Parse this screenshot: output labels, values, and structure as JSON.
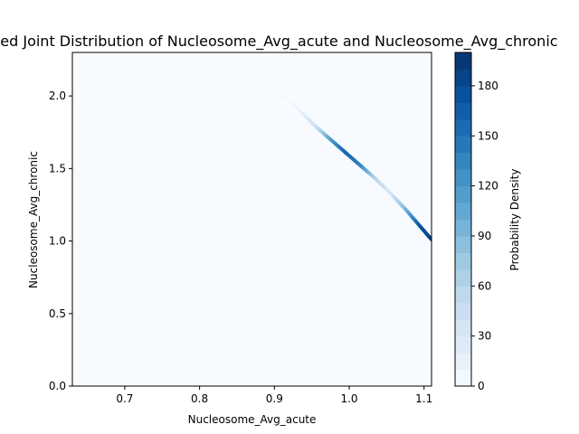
{
  "chart_data": {
    "type": "heatmap",
    "title": "Estimated Joint Distribution of Nucleosome_Avg_acute and Nucleosome_Avg_chronic",
    "xlabel": "Nucleosome_Avg_acute",
    "ylabel": "Nucleosome_Avg_chronic",
    "xlim": [
      0.63,
      1.11
    ],
    "ylim": [
      0.0,
      2.3
    ],
    "xticks": [
      0.7,
      0.8,
      0.9,
      1.0,
      1.1
    ],
    "xtick_labels": [
      "0.7",
      "0.8",
      "0.9",
      "1.0",
      "1.1"
    ],
    "yticks": [
      0.0,
      0.5,
      1.0,
      1.5,
      2.0
    ],
    "ytick_labels": [
      "0.0",
      "0.5",
      "1.0",
      "1.5",
      "2.0"
    ],
    "density_ridge": [
      {
        "x": 0.89,
        "y": 2.1,
        "density": 3
      },
      {
        "x": 0.93,
        "y": 1.92,
        "density": 8
      },
      {
        "x": 0.955,
        "y": 1.79,
        "density": 40
      },
      {
        "x": 0.975,
        "y": 1.7,
        "density": 110
      },
      {
        "x": 0.995,
        "y": 1.61,
        "density": 160
      },
      {
        "x": 1.015,
        "y": 1.52,
        "density": 140
      },
      {
        "x": 1.035,
        "y": 1.43,
        "density": 60
      },
      {
        "x": 1.055,
        "y": 1.33,
        "density": 30
      },
      {
        "x": 1.075,
        "y": 1.22,
        "density": 90
      },
      {
        "x": 1.095,
        "y": 1.1,
        "density": 170
      },
      {
        "x": 1.11,
        "y": 1.01,
        "density": 190
      }
    ],
    "colorbar": {
      "label": "Probability Density",
      "colormap": "Blues",
      "range": [
        0,
        200
      ],
      "ticks": [
        0,
        30,
        60,
        90,
        120,
        150,
        180
      ],
      "tick_labels": [
        "0",
        "30",
        "60",
        "90",
        "120",
        "150",
        "180"
      ],
      "levels": 20
    },
    "grid": false
  },
  "colors": {
    "background_fill": "#f7fbff",
    "colormap_low": "#f7fbff",
    "colormap_high": "#08306b"
  }
}
